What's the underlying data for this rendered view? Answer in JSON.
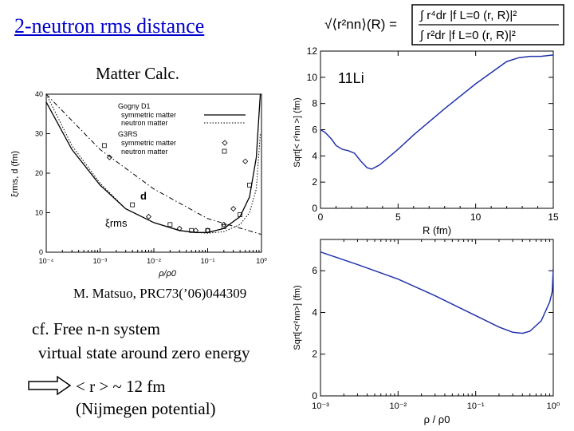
{
  "page": {
    "title": "2-neutron rms distance",
    "subtitle": "Matter Calc.",
    "citation": "M. Matsuo, PRC73(’06)044309",
    "note_line1": "cf. Free n-n system",
    "note_line2": "virtual state around zero energy",
    "result_line1": "< r > ~ 12 fm",
    "result_line2": "(Nijmegen potential)",
    "formula_lhs": "√⟨r²nn⟩(R) =",
    "formula_num": "∫ r⁴dr |f L=0 (r, R)|²",
    "formula_den": "∫ r²dr |f L=0 (r, R)|²",
    "accent_color": "#0000cc",
    "curve_color": "#2233aa"
  },
  "chart_data": [
    {
      "type": "line",
      "title": "",
      "xlabel": "ρ/ρ0",
      "ylabel": "ξrms, d (fm)",
      "xscale": "log",
      "xlim": [
        0.0001,
        1
      ],
      "ylim": [
        0,
        40
      ],
      "x_tick_labels": [
        "10⁻⁴",
        "10⁻³",
        "10⁻²",
        "10⁻¹",
        "10⁰"
      ],
      "y_ticks": [
        0,
        10,
        20,
        30,
        40
      ],
      "legend_group1": "Gogny D1",
      "legend_group2": "G3RS",
      "legend_labels": [
        "symmetric matter",
        "neutron matter",
        "symmetric matter",
        "neutron matter"
      ],
      "annotation_d": "d",
      "annotation_xi": "ξrms",
      "series": [
        {
          "name": "Gogny D1 symmetric matter (ξrms)",
          "style": "solid",
          "x": [
            0.0001,
            0.0003,
            0.001,
            0.003,
            0.01,
            0.03,
            0.06,
            0.1,
            0.2,
            0.4,
            0.6,
            0.8,
            0.95
          ],
          "y": [
            38,
            26,
            17,
            11,
            7.5,
            5.5,
            5.0,
            5.0,
            6.0,
            9.0,
            14,
            24,
            40
          ]
        },
        {
          "name": "Gogny D1 neutron matter (ξrms)",
          "style": "dotted",
          "x": [
            0.0001,
            0.0003,
            0.001,
            0.003,
            0.01,
            0.03,
            0.06,
            0.1,
            0.2,
            0.4,
            0.6,
            0.8,
            0.95
          ],
          "y": [
            40,
            27,
            17.5,
            11,
            7.5,
            5.5,
            5.0,
            4.8,
            5.2,
            7.0,
            10,
            16,
            30
          ]
        },
        {
          "name": "interparticle distance d",
          "style": "dash-dot",
          "x": [
            0.0001,
            0.001,
            0.01,
            0.1,
            1
          ],
          "y": [
            40,
            26,
            16,
            8.5,
            4.5
          ]
        },
        {
          "name": "G3RS symmetric matter",
          "style": "diamond",
          "x": [
            0.0015,
            0.008,
            0.03,
            0.06,
            0.1,
            0.2,
            0.3,
            0.5
          ],
          "y": [
            24,
            9,
            6.0,
            5.5,
            5.5,
            7.0,
            11,
            23
          ]
        },
        {
          "name": "G3RS neutron matter",
          "style": "square",
          "x": [
            0.0012,
            0.004,
            0.02,
            0.05,
            0.1,
            0.2,
            0.4,
            0.6
          ],
          "y": [
            27,
            12,
            7.0,
            5.5,
            5.5,
            6.5,
            9.5,
            17
          ]
        }
      ]
    },
    {
      "type": "line",
      "title": "11Li",
      "xlabel": "R (fm)",
      "ylabel": "Sqrt[< r²nn >] (fm)",
      "xlim": [
        0,
        15
      ],
      "ylim": [
        0,
        12
      ],
      "x_ticks": [
        0,
        5,
        10,
        15
      ],
      "y_ticks": [
        0,
        2,
        4,
        6,
        8,
        10,
        12
      ],
      "series": [
        {
          "name": "11Li",
          "x": [
            0,
            0.3,
            0.7,
            1.0,
            1.4,
            1.8,
            2.2,
            2.6,
            3.0,
            3.3,
            3.8,
            5,
            6,
            8,
            10,
            12,
            12.8,
            13.5,
            14.2,
            15
          ],
          "y": [
            6.0,
            5.8,
            5.3,
            4.8,
            4.5,
            4.4,
            4.2,
            3.6,
            3.1,
            3.0,
            3.3,
            4.5,
            5.6,
            7.6,
            9.5,
            11.2,
            11.5,
            11.6,
            11.6,
            11.7
          ]
        }
      ]
    },
    {
      "type": "line",
      "title": "",
      "xlabel": "ρ / ρ0",
      "ylabel": "Sqrt[<r²nn>] (fm)",
      "xscale": "log",
      "xlim": [
        0.001,
        1
      ],
      "ylim": [
        0,
        7.5
      ],
      "x_tick_labels": [
        "10⁻³",
        "10⁻²",
        "10⁻¹",
        "10⁰"
      ],
      "y_ticks": [
        0,
        2,
        4,
        6
      ],
      "series": [
        {
          "name": "11Li vs density",
          "x": [
            0.001,
            0.003,
            0.01,
            0.03,
            0.1,
            0.2,
            0.3,
            0.4,
            0.5,
            0.7,
            0.9,
            0.97,
            1.0
          ],
          "y": [
            6.9,
            6.3,
            5.6,
            4.8,
            3.85,
            3.3,
            3.05,
            3.0,
            3.1,
            3.6,
            4.5,
            5.0,
            6.1
          ]
        }
      ]
    }
  ]
}
